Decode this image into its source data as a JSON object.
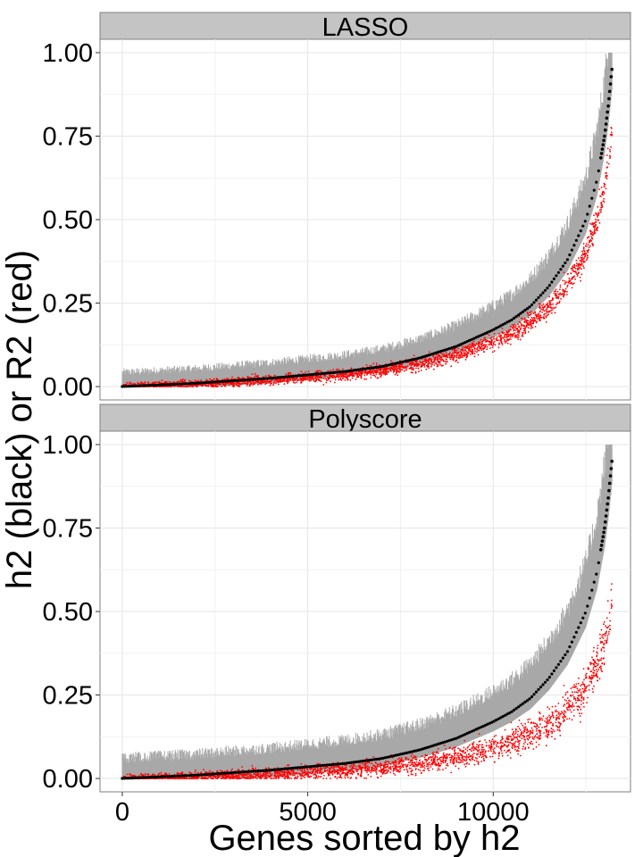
{
  "chart_data": {
    "type": "scatter",
    "ylabel": "h2 (black) or R2 (red)",
    "xlabel": "Genes sorted by h2",
    "xlim": [
      -600,
      13700
    ],
    "ylim": [
      -0.04,
      1.04
    ],
    "x_ticks": [
      0,
      5000,
      10000
    ],
    "x_tick_labels": [
      "0",
      "5000",
      "10000"
    ],
    "y_ticks": [
      0,
      0.25,
      0.5,
      0.75,
      1.0
    ],
    "y_tick_labels": [
      "0.00",
      "0.25",
      "0.50",
      "0.75",
      "1.00"
    ],
    "grid": true,
    "n_genes": 13200,
    "h2_curve": [
      [
        0,
        0.0
      ],
      [
        2000,
        0.01
      ],
      [
        4000,
        0.025
      ],
      [
        6000,
        0.045
      ],
      [
        7000,
        0.06
      ],
      [
        8000,
        0.085
      ],
      [
        9000,
        0.12
      ],
      [
        10000,
        0.17
      ],
      [
        10500,
        0.2
      ],
      [
        11000,
        0.24
      ],
      [
        11500,
        0.3
      ],
      [
        12000,
        0.38
      ],
      [
        12500,
        0.5
      ],
      [
        12800,
        0.62
      ],
      [
        13000,
        0.75
      ],
      [
        13100,
        0.84
      ],
      [
        13200,
        0.95
      ]
    ],
    "series_colors": {
      "h2": "#000000",
      "R2": "#ff0000",
      "interval": "#a8a8a8"
    },
    "panels": [
      {
        "title": "LASSO",
        "r2_mean_factor": 0.8,
        "r2_spread": 0.07,
        "interval_width": 0.045
      },
      {
        "title": "Polyscore",
        "r2_mean_factor": 0.55,
        "r2_spread": 0.12,
        "interval_width": 0.065
      }
    ]
  }
}
